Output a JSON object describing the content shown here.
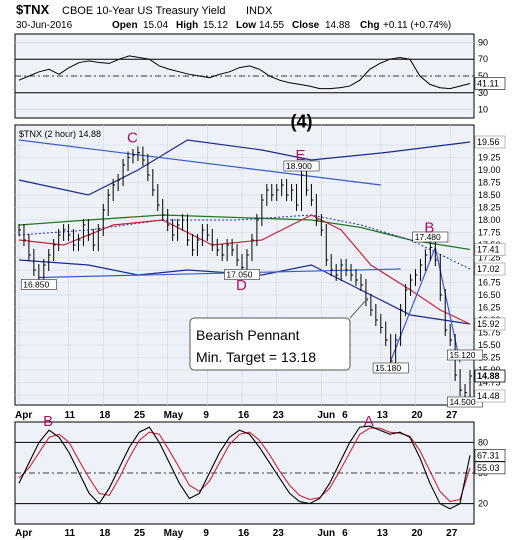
{
  "header": {
    "ticker": "$TNX",
    "name": "CBOE 10-Year US Treasury Yield",
    "exchange": "INDX",
    "date": "30-Jun-2016",
    "open_label": "Open",
    "open": "15.04",
    "high_label": "High",
    "high": "15.12",
    "low_label": "Low",
    "low": "14.55",
    "close_label": "Close",
    "close": "14.88",
    "chg_label": "Chg",
    "chg": "+0.11 (+0.74%)"
  },
  "colors": {
    "bg": "#ffffff",
    "panel_bg": "#eef2f8",
    "ma_short": "#cc2233",
    "ma_long": "#227722",
    "ma_dotted": "#2233aa",
    "bands": "#1a2a8a",
    "wave": "#3b5bcc",
    "price": "#000000",
    "label_wave": "#2a4bd0",
    "label_corr": "#b01060"
  },
  "chart_data": [
    {
      "type": "line",
      "title": "",
      "y_ticks": [
        "10",
        "30",
        "50",
        "70",
        "90"
      ],
      "ylim": [
        0,
        100
      ],
      "current_label": "41.11",
      "ref_levels": [
        30,
        50,
        70
      ],
      "values": [
        45,
        50,
        55,
        58,
        52,
        60,
        66,
        68,
        66,
        65,
        70,
        74,
        72,
        70,
        62,
        58,
        55,
        52,
        50,
        48,
        52,
        55,
        60,
        62,
        58,
        50,
        45,
        42,
        40,
        38,
        35,
        35,
        36,
        38,
        45,
        58,
        65,
        70,
        72,
        70,
        50,
        40,
        36,
        35,
        38,
        41.11
      ]
    },
    {
      "type": "line",
      "title": "$TNX (2 hour) 14.88",
      "y_ticks": [
        "14.50",
        "14.75",
        "15.00",
        "15.25",
        "15.50",
        "15.75",
        "16.00",
        "16.25",
        "16.50",
        "16.75",
        "17.00",
        "17.25",
        "17.50",
        "17.75",
        "18.00",
        "18.25",
        "18.50",
        "18.75",
        "19.00",
        "19.25",
        "19.50"
      ],
      "ylim": [
        14.3,
        19.9
      ],
      "x_ticks": [
        {
          "label": "Apr",
          "day": 1
        },
        {
          "label": "11",
          "day": 11
        },
        {
          "label": "18",
          "day": 18
        },
        {
          "label": "25",
          "day": 25
        },
        {
          "label": "May",
          "day": 31
        },
        {
          "label": "9",
          "day": 39
        },
        {
          "label": "16",
          "day": 46
        },
        {
          "label": "23",
          "day": 53
        },
        {
          "label": "Jun",
          "day": 62
        },
        {
          "label": "6",
          "day": 67
        },
        {
          "label": "13",
          "day": 74
        },
        {
          "label": "20",
          "day": 81
        },
        {
          "label": "27",
          "day": 88
        }
      ],
      "x_range": [
        1,
        92
      ],
      "price": [
        [
          1,
          17.8
        ],
        [
          2,
          17.6
        ],
        [
          3,
          17.3
        ],
        [
          4,
          17.0
        ],
        [
          5,
          16.85
        ],
        [
          6,
          17.1
        ],
        [
          7,
          17.3
        ],
        [
          8,
          17.5
        ],
        [
          9,
          17.7
        ],
        [
          10,
          17.8
        ],
        [
          11,
          17.7
        ],
        [
          12,
          17.5
        ],
        [
          13,
          17.6
        ],
        [
          14,
          17.9
        ],
        [
          15,
          17.7
        ],
        [
          16,
          17.5
        ],
        [
          17,
          17.8
        ],
        [
          18,
          18.2
        ],
        [
          19,
          18.5
        ],
        [
          20,
          18.7
        ],
        [
          21,
          18.8
        ],
        [
          22,
          19.1
        ],
        [
          23,
          19.25
        ],
        [
          24,
          19.3
        ],
        [
          25,
          19.35
        ],
        [
          26,
          19.2
        ],
        [
          27,
          18.9
        ],
        [
          28,
          18.6
        ],
        [
          29,
          18.3
        ],
        [
          30,
          18.1
        ],
        [
          31,
          17.9
        ],
        [
          32,
          17.7
        ],
        [
          33,
          17.9
        ],
        [
          34,
          18.0
        ],
        [
          35,
          17.6
        ],
        [
          36,
          17.4
        ],
        [
          37,
          17.6
        ],
        [
          38,
          17.8
        ],
        [
          39,
          17.7
        ],
        [
          40,
          17.5
        ],
        [
          41,
          17.4
        ],
        [
          42,
          17.3
        ],
        [
          43,
          17.5
        ],
        [
          44,
          17.4
        ],
        [
          45,
          17.2
        ],
        [
          46,
          17.05
        ],
        [
          47,
          17.3
        ],
        [
          48,
          17.6
        ],
        [
          49,
          18.0
        ],
        [
          50,
          18.4
        ],
        [
          51,
          18.6
        ],
        [
          52,
          18.5
        ],
        [
          53,
          18.6
        ],
        [
          54,
          18.7
        ],
        [
          55,
          18.5
        ],
        [
          56,
          18.6
        ],
        [
          57,
          18.3
        ],
        [
          58,
          18.9
        ],
        [
          59,
          18.6
        ],
        [
          60,
          18.4
        ],
        [
          61,
          18.0
        ],
        [
          62,
          17.8
        ],
        [
          63,
          17.2
        ],
        [
          64,
          17.0
        ],
        [
          65,
          16.9
        ],
        [
          66,
          17.1
        ],
        [
          67,
          17.0
        ],
        [
          68,
          16.9
        ],
        [
          69,
          16.8
        ],
        [
          70,
          16.7
        ],
        [
          71,
          16.4
        ],
        [
          72,
          16.2
        ],
        [
          73,
          16.0
        ],
        [
          74,
          15.85
        ],
        [
          75,
          15.6
        ],
        [
          76,
          15.18
        ],
        [
          77,
          15.6
        ],
        [
          78,
          16.2
        ],
        [
          79,
          16.6
        ],
        [
          80,
          16.8
        ],
        [
          81,
          16.9
        ],
        [
          82,
          17.1
        ],
        [
          83,
          17.3
        ],
        [
          84,
          17.45
        ],
        [
          85,
          17.2
        ],
        [
          86,
          16.5
        ],
        [
          87,
          15.8
        ],
        [
          88,
          15.6
        ],
        [
          89,
          14.9
        ],
        [
          90,
          14.6
        ],
        [
          91,
          14.55
        ],
        [
          92,
          14.88
        ]
      ],
      "current_label": "14.88",
      "price_side_labels": [
        "19.56",
        "17.41",
        "17.02",
        "15.92",
        "14.48"
      ],
      "upper_band": [
        [
          1,
          18.8
        ],
        [
          15,
          18.5
        ],
        [
          25,
          19.0
        ],
        [
          35,
          19.6
        ],
        [
          50,
          19.4
        ],
        [
          60,
          19.2
        ],
        [
          75,
          19.35
        ],
        [
          92,
          19.56
        ]
      ],
      "lower_band": [
        [
          1,
          17.2
        ],
        [
          15,
          17.1
        ],
        [
          25,
          16.9
        ],
        [
          35,
          17.0
        ],
        [
          50,
          16.9
        ],
        [
          60,
          17.1
        ],
        [
          70,
          16.6
        ],
        [
          80,
          16.1
        ],
        [
          92,
          15.92
        ]
      ],
      "ma_short": [
        [
          1,
          17.6
        ],
        [
          10,
          17.5
        ],
        [
          20,
          17.9
        ],
        [
          30,
          18.0
        ],
        [
          40,
          17.5
        ],
        [
          50,
          17.6
        ],
        [
          60,
          18.1
        ],
        [
          66,
          17.8
        ],
        [
          72,
          17.1
        ],
        [
          80,
          16.6
        ],
        [
          86,
          16.2
        ],
        [
          92,
          15.92
        ]
      ],
      "ma_long": [
        [
          1,
          17.9
        ],
        [
          15,
          18.0
        ],
        [
          30,
          18.1
        ],
        [
          45,
          18.05
        ],
        [
          60,
          18.0
        ],
        [
          70,
          17.85
        ],
        [
          80,
          17.6
        ],
        [
          92,
          17.41
        ]
      ],
      "ma_dotted": [
        [
          1,
          17.7
        ],
        [
          15,
          17.8
        ],
        [
          30,
          18.0
        ],
        [
          45,
          18.0
        ],
        [
          60,
          18.1
        ],
        [
          70,
          17.9
        ],
        [
          80,
          17.6
        ],
        [
          92,
          17.02
        ]
      ],
      "trendlines": [
        {
          "from": [
            1,
            19.6
          ],
          "to": [
            74,
            18.7
          ]
        },
        {
          "from": [
            5,
            16.85
          ],
          "to": [
            78,
            17.02
          ]
        },
        {
          "from": [
            76,
            15.18
          ],
          "to": [
            85,
            17.45
          ]
        },
        {
          "from": [
            85,
            17.45
          ],
          "to": [
            90,
            15.15
          ]
        }
      ],
      "point_labels": [
        {
          "text": "18.900",
          "day": 58,
          "y": 18.9
        },
        {
          "text": "17.480",
          "day": 84,
          "y": 17.48
        },
        {
          "text": "16.850",
          "day": 5,
          "y": 16.85
        },
        {
          "text": "17.050",
          "day": 46,
          "y": 17.05
        },
        {
          "text": "15.180",
          "day": 76,
          "y": 15.18
        },
        {
          "text": "15.120",
          "day": 91,
          "y": 15.12
        },
        {
          "text": "14.500",
          "day": 91,
          "y": 14.5
        }
      ],
      "wave_labels": [
        {
          "text": "C",
          "day": 24,
          "y": 19.55
        },
        {
          "text": "E",
          "day": 58,
          "y": 19.2
        },
        {
          "text": "(4)",
          "day": 57,
          "y": 19.85
        },
        {
          "text": "B",
          "day": 84,
          "y": 17.75
        },
        {
          "text": "D",
          "day": 46,
          "y": 16.6
        }
      ],
      "annotation": {
        "line1": "Bearish Pennant",
        "line2": "Min. Target = 13.18"
      }
    },
    {
      "type": "line",
      "title": "",
      "y_ticks": [
        "20",
        "50",
        "80"
      ],
      "ylim": [
        0,
        100
      ],
      "current_labels": [
        "67.31",
        "55.03"
      ],
      "ref_levels": [
        20,
        50,
        80
      ],
      "fast": [
        40,
        60,
        80,
        92,
        85,
        70,
        50,
        30,
        20,
        35,
        55,
        75,
        90,
        95,
        80,
        60,
        40,
        25,
        30,
        50,
        70,
        85,
        92,
        88,
        75,
        60,
        45,
        30,
        22,
        20,
        25,
        40,
        60,
        80,
        95,
        96,
        92,
        88,
        90,
        85,
        65,
        40,
        20,
        15,
        20,
        67.31
      ],
      "slow": [
        45,
        55,
        70,
        85,
        88,
        80,
        62,
        45,
        30,
        28,
        45,
        65,
        82,
        90,
        88,
        72,
        55,
        38,
        32,
        42,
        60,
        78,
        88,
        90,
        82,
        68,
        52,
        38,
        28,
        24,
        26,
        35,
        52,
        70,
        88,
        94,
        94,
        90,
        89,
        86,
        72,
        52,
        32,
        22,
        24,
        55.03
      ],
      "wave_labels": [
        {
          "text": "B",
          "idx": 3
        },
        {
          "text": "A",
          "idx": 35
        }
      ]
    }
  ]
}
